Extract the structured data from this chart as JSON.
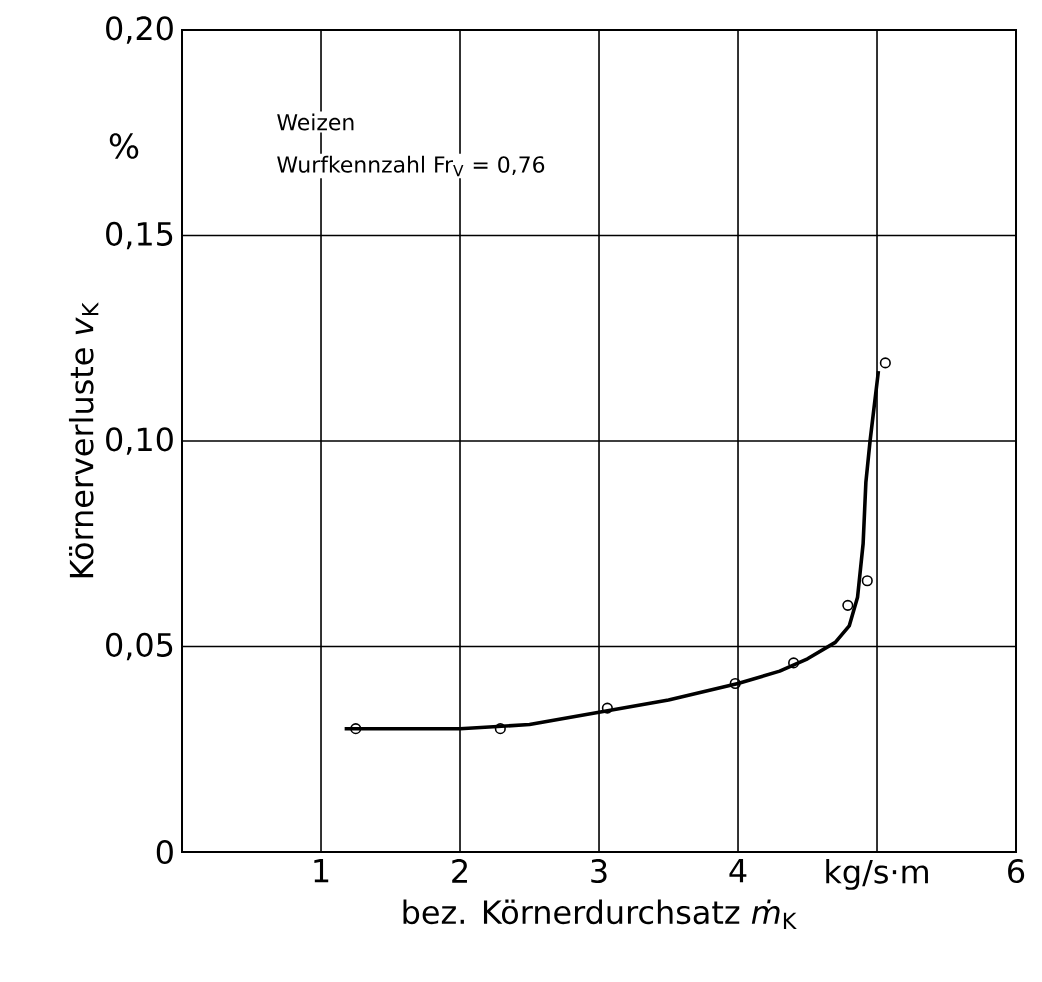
{
  "chart_data": {
    "type": "scatter",
    "xlabel": "bez. Körnerdurchsatz *ṁ*$_{K}$",
    "ylabel": "Körnerverluste *v*$_{K}$",
    "annotations": [
      "%",
      "Weizen",
      "Wurfkennzahl Fr$_{V}$ = 0,76"
    ],
    "xlim": [
      0,
      6
    ],
    "ylim": [
      0,
      0.2
    ],
    "xticks": [
      {
        "value": 0,
        "label": null
      },
      1,
      2,
      3,
      4,
      {
        "value": 5,
        "label": "kg/s·m"
      },
      6
    ],
    "yticks": [
      0,
      {
        "value": 0.05,
        "label": "0,05"
      },
      {
        "value": 0.1,
        "label": "0,10"
      },
      {
        "value": 0.15,
        "label": "0,15"
      },
      {
        "value": 0.2,
        "label": "0,20"
      }
    ],
    "grid": true,
    "series": [
      {
        "color": "#000000",
        "marker": "circle",
        "x": [
          1.25,
          2.29,
          3.06,
          3.98,
          4.4,
          4.79,
          4.93,
          5.06
        ],
        "values": [
          0.03,
          0.03,
          0.035,
          0.041,
          0.046,
          0.06,
          0.066,
          0.119
        ]
      },
      {
        "type": "line",
        "color": "#000000",
        "marker": "none",
        "line_style": "solid",
        "x": [
          1.17,
          1.5,
          2,
          2.5,
          3,
          3.5,
          4,
          4.3,
          4.5,
          4.7,
          4.8,
          4.86,
          4.9,
          4.92,
          4.95,
          5.01
        ],
        "values": [
          0.03,
          0.03,
          0.03,
          0.031,
          0.034,
          0.037,
          0.041,
          0.044,
          0.047,
          0.051,
          0.055,
          0.062,
          0.075,
          0.09,
          0.1,
          0.117
        ]
      }
    ]
  }
}
